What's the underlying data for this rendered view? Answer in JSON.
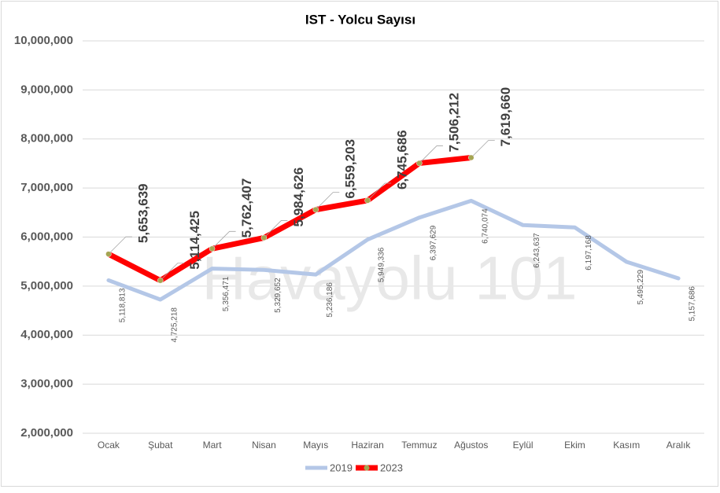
{
  "chart_data": {
    "type": "line",
    "title": "IST - Yolcu Sayısı",
    "annotation": "Havayolu 101",
    "categories": [
      "Ocak",
      "Şubat",
      "Mart",
      "Nisan",
      "Mayıs",
      "Haziran",
      "Temmuz",
      "Ağustos",
      "Eylül",
      "Ekim",
      "Kasım",
      "Aralık"
    ],
    "series": [
      {
        "name": "2019",
        "color": "#b4c7e7",
        "values": [
          5118813,
          4725218,
          5356471,
          5329652,
          5236186,
          5949336,
          6397629,
          6740074,
          6243637,
          6197168,
          5495229,
          5157686
        ],
        "value_labels": [
          "5,118,813",
          "4,725,218",
          "5,356,471",
          "5,329,652",
          "5,236,186",
          "5,949,336",
          "6,397,629",
          "6,740,074",
          "6,243,637",
          "6,197,168",
          "5,495,229",
          "5,157,686"
        ]
      },
      {
        "name": "2023",
        "color": "#ff0000",
        "marker_color": "#a5a552",
        "values": [
          5653639,
          5114425,
          5762407,
          5984626,
          6559203,
          6745686,
          7506212,
          7619660,
          null,
          null,
          null,
          null
        ],
        "value_labels": [
          "5,653,639",
          "5,114,425",
          "5,762,407",
          "5,984,626",
          "6,559,203",
          "6,745,686",
          "7,506,212",
          "7,619,660",
          null,
          null,
          null,
          null
        ]
      }
    ],
    "ylim": [
      2000000,
      10000000
    ],
    "yticks": [
      {
        "value": 2000000,
        "label": "2,000,000"
      },
      {
        "value": 3000000,
        "label": "3,000,000"
      },
      {
        "value": 4000000,
        "label": "4,000,000"
      },
      {
        "value": 5000000,
        "label": "5,000,000"
      },
      {
        "value": 6000000,
        "label": "6,000,000"
      },
      {
        "value": 7000000,
        "label": "7,000,000"
      },
      {
        "value": 8000000,
        "label": "8,000,000"
      },
      {
        "value": 9000000,
        "label": "9,000,000"
      },
      {
        "value": 10000000,
        "label": "10,000,000"
      }
    ],
    "grid": true,
    "legend": "bottom"
  }
}
